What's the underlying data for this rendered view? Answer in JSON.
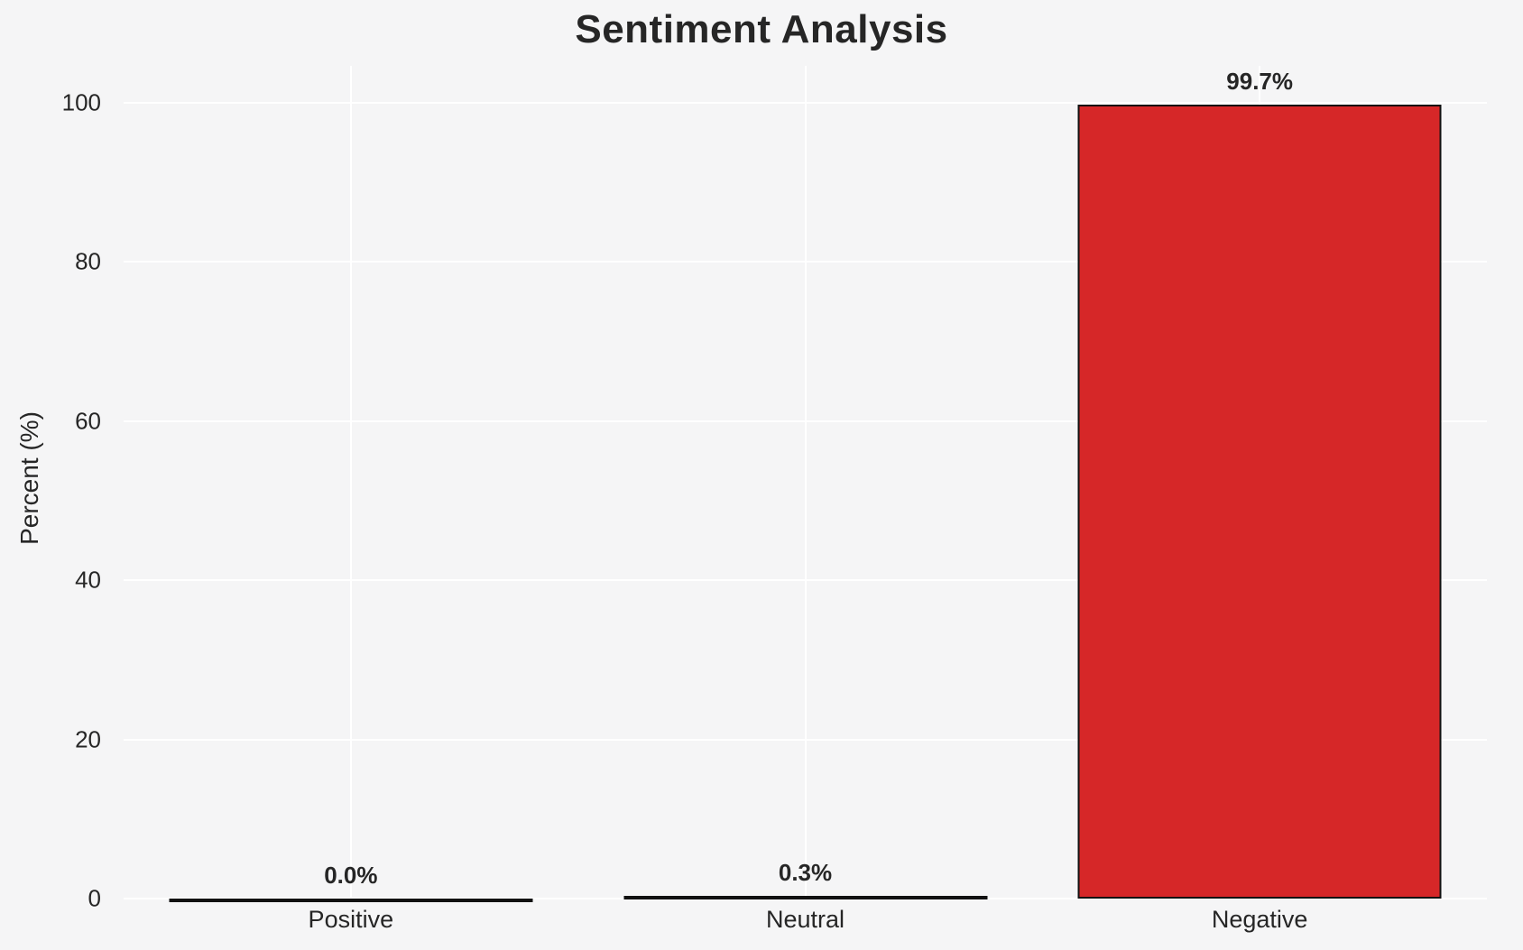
{
  "chart_data": {
    "type": "bar",
    "title": "Sentiment Analysis",
    "xlabel": "",
    "ylabel": "Percent (%)",
    "categories": [
      "Positive",
      "Neutral",
      "Negative"
    ],
    "values": [
      0.0,
      0.3,
      99.7
    ],
    "value_labels": [
      "0.0%",
      "0.3%",
      "99.7%"
    ],
    "bar_colors": [
      null,
      null,
      "#d62728"
    ],
    "bar_edge_color": "#111111",
    "yticks": [
      0,
      20,
      40,
      60,
      80,
      100
    ],
    "ylim": [
      0,
      104.6
    ],
    "grid": true,
    "legend": "none",
    "colors": {
      "background": "#f5f5f6",
      "gridline": "#ffffff",
      "text": "#262626"
    }
  }
}
